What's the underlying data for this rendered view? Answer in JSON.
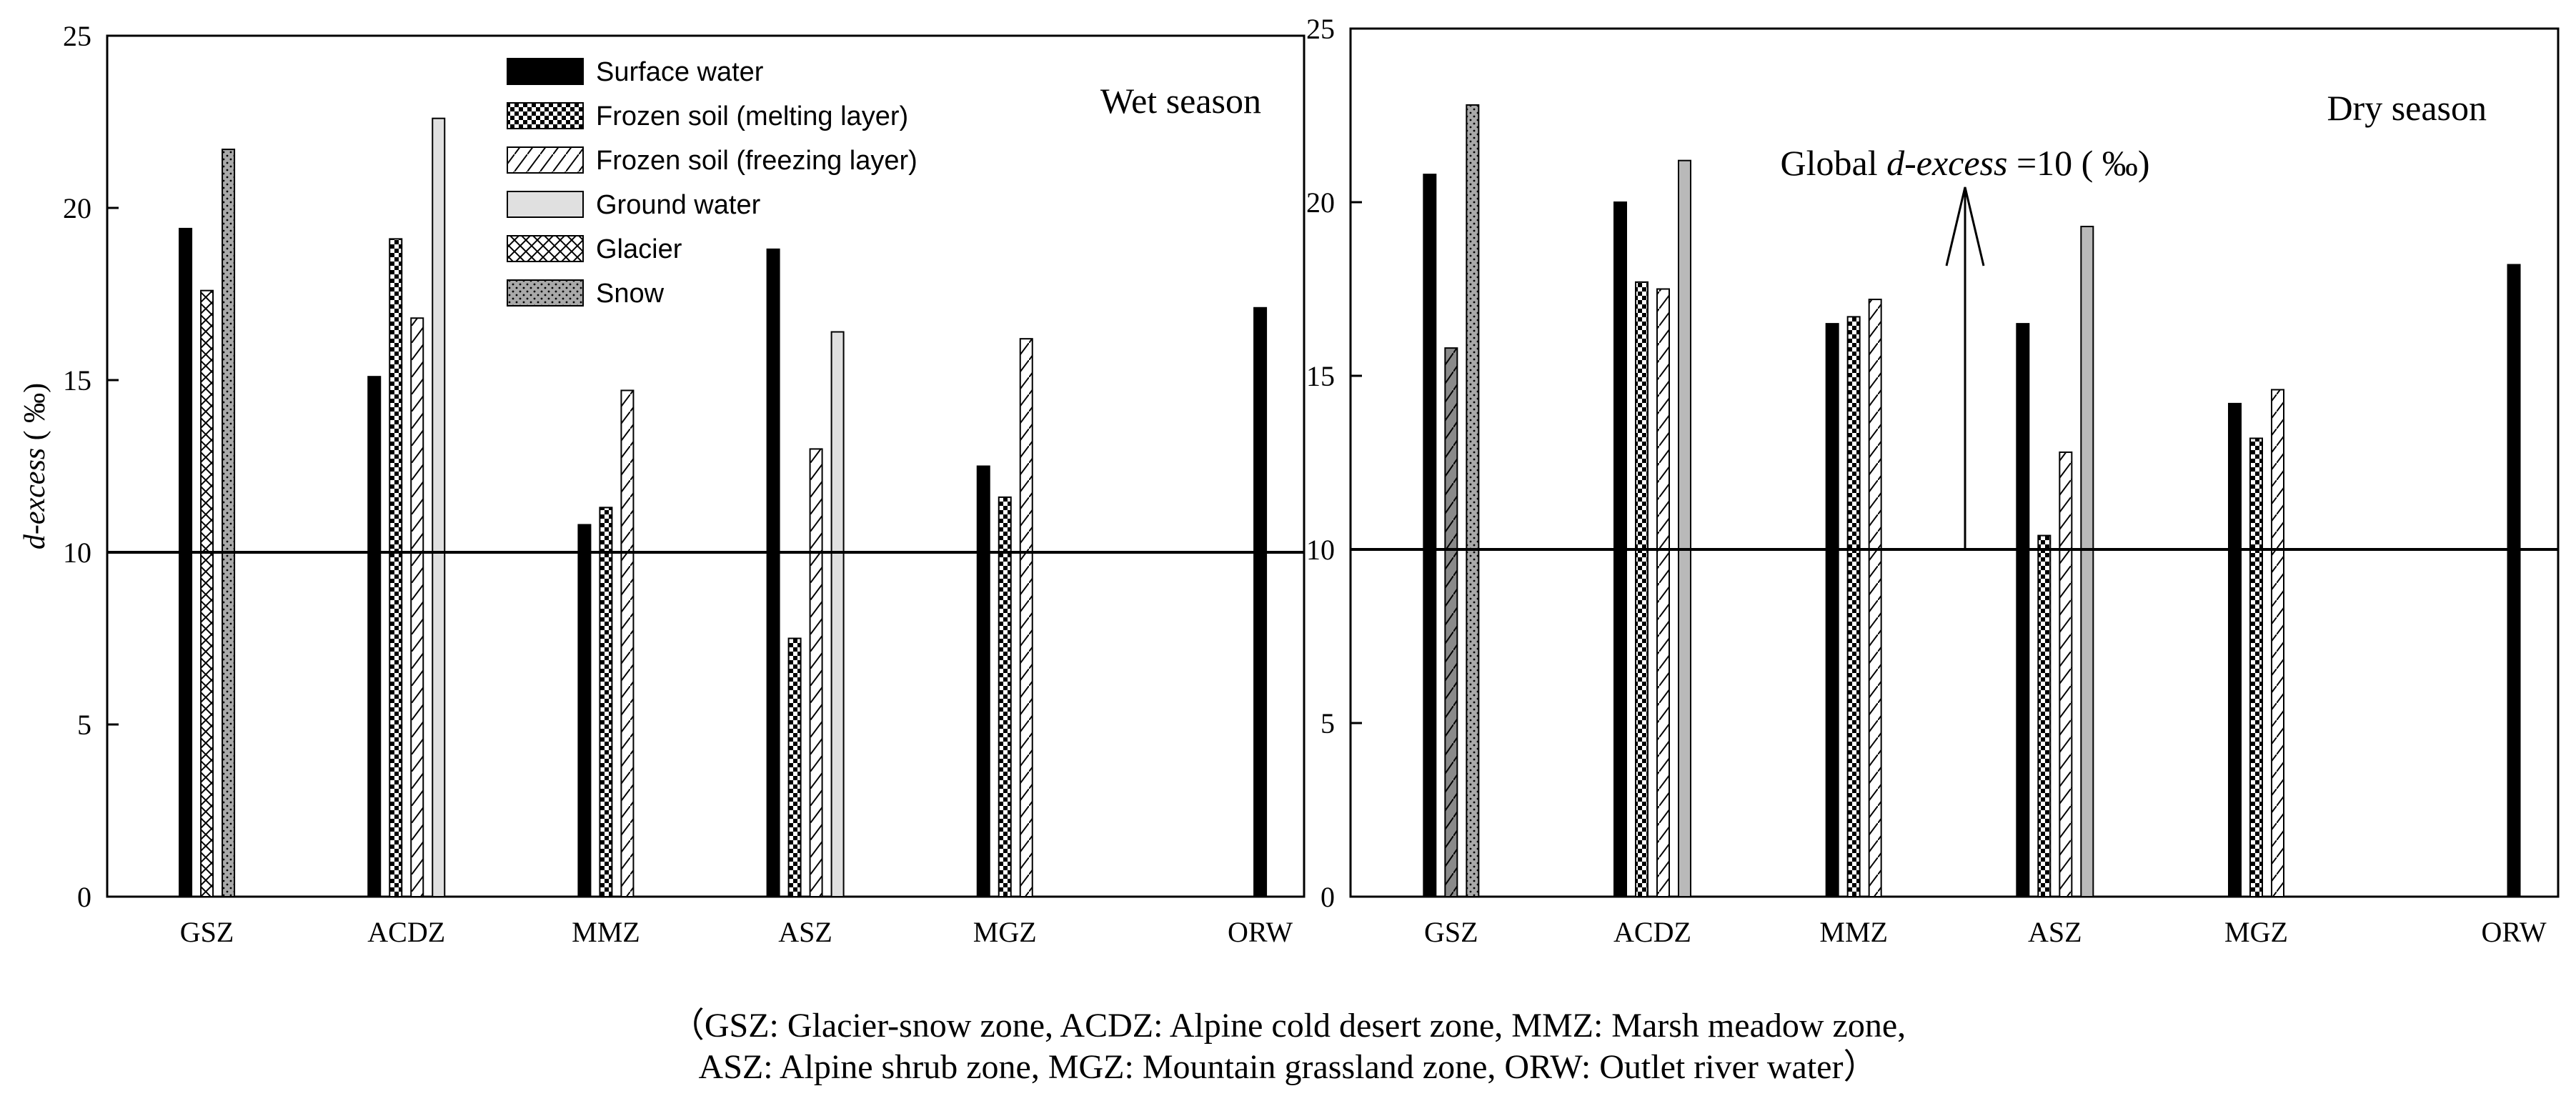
{
  "chart_data": [
    {
      "type": "bar",
      "title": "Wet season",
      "xlabel": "",
      "ylabel": "d-excess ( ‰)",
      "ylabel_italic": "d-excess",
      "ylabel_rest": " ( ‰)",
      "ylim": [
        0,
        25
      ],
      "yticks": [
        0,
        5,
        10,
        15,
        20,
        25
      ],
      "reference_line": 10,
      "grid": false,
      "legend_position": "top-center",
      "categories": [
        "GSZ",
        "ACDZ",
        "MMZ",
        "ASZ",
        "MGZ",
        "ORW"
      ],
      "series": [
        {
          "name": "Surface water",
          "values": [
            19.4,
            15.1,
            10.8,
            18.8,
            12.5,
            17.1
          ]
        },
        {
          "name": "Frozen soil (melting layer)",
          "values": [
            null,
            19.1,
            11.3,
            7.5,
            11.6,
            null
          ]
        },
        {
          "name": "Frozen soil (freezing layer)",
          "values": [
            null,
            16.8,
            14.7,
            13.0,
            16.2,
            null
          ]
        },
        {
          "name": "Ground water",
          "values": [
            null,
            22.6,
            null,
            16.4,
            null,
            null
          ]
        },
        {
          "name": "Glacier",
          "values": [
            17.6,
            null,
            null,
            null,
            null,
            null
          ]
        },
        {
          "name": "Snow",
          "values": [
            21.7,
            null,
            null,
            null,
            null,
            null
          ]
        }
      ]
    },
    {
      "type": "bar",
      "title": "Dry season",
      "xlabel": "",
      "ylabel": "",
      "ylim": [
        0,
        25
      ],
      "yticks": [
        0,
        5,
        10,
        15,
        20,
        25
      ],
      "reference_line": 10,
      "annotation": {
        "prefix": "Global ",
        "italic": "d-excess",
        "suffix": " =10 ( ‰)",
        "value": 10
      },
      "grid": false,
      "categories": [
        "GSZ",
        "ACDZ",
        "MMZ",
        "ASZ",
        "MGZ",
        "ORW"
      ],
      "series": [
        {
          "name": "Surface water",
          "values": [
            20.8,
            20.0,
            16.5,
            16.5,
            14.2,
            18.2
          ]
        },
        {
          "name": "Frozen soil (melting layer)",
          "values": [
            null,
            17.7,
            16.7,
            10.4,
            13.2,
            null
          ]
        },
        {
          "name": "Frozen soil (freezing layer)",
          "values": [
            null,
            17.5,
            17.2,
            12.8,
            14.6,
            null
          ]
        },
        {
          "name": "Ground water",
          "values": [
            null,
            21.2,
            null,
            19.3,
            null,
            null
          ]
        },
        {
          "name": "Glacier",
          "values": [
            15.8,
            null,
            null,
            null,
            null,
            null
          ]
        },
        {
          "name": "Snow",
          "values": [
            22.8,
            null,
            null,
            null,
            null,
            null
          ]
        }
      ]
    }
  ],
  "caption": {
    "line1": "（GSZ: Glacier-snow zone, ACDZ: Alpine cold desert zone, MMZ: Marsh meadow zone,",
    "line2": "ASZ: Alpine shrub zone, MGZ: Mountain grassland zone, ORW: Outlet river water）"
  },
  "colors": {
    "surface_water": "#000000",
    "ground_water": "#e0e0e0",
    "dry_ground_water": "#b9b9b9",
    "snow": "#a9a9a9",
    "glacier": "#8a8a8a",
    "axis": "#000000"
  }
}
